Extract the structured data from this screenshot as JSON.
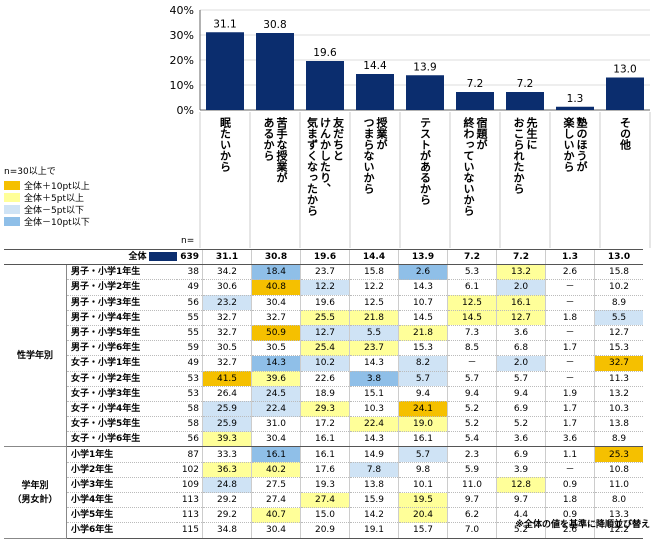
{
  "chart_data": {
    "type": "bar",
    "categories": [
      "眠たいから",
      "苦手な授業があるから",
      "友だとけんかしたり、気まずくなったから",
      "授業がつまらないから",
      "テストがあるから",
      "宿題が終わっていないから",
      "先生におこられたから",
      "塾のほうが楽しいから",
      "その他"
    ],
    "values": [
      31.1,
      30.8,
      19.6,
      14.4,
      13.9,
      7.2,
      7.2,
      1.3,
      13.0
    ],
    "value_labels": [
      "31.1",
      "30.8",
      "19.6",
      "14.4",
      "13.9",
      "7.2",
      "7.2",
      "1.3",
      "13.0"
    ],
    "y_ticks": [
      "40%",
      "30%",
      "20%",
      "10%",
      "0%"
    ],
    "ylim": [
      0,
      40
    ],
    "bar_color": "#0b2d6e"
  },
  "label_lines": [
    [
      "眠たいから"
    ],
    [
      "苦手な授業が",
      "あるから"
    ],
    [
      "友だちと",
      "けんかしたり、",
      "気まずくなったから"
    ],
    [
      "授業が",
      "つまらないから"
    ],
    [
      "テストがあるから"
    ],
    [
      "宿題が",
      "終わっていないから"
    ],
    [
      "先生に",
      "おこられたから"
    ],
    [
      "塾のほうが",
      "楽しいから"
    ],
    [
      "その他"
    ]
  ],
  "legend": {
    "title": "n=30以上で",
    "items": [
      {
        "label": "全体＋10pt以上",
        "color": "#f5c000"
      },
      {
        "label": "全体＋5pt以上",
        "color": "#ffff99"
      },
      {
        "label": "全体－5pt以下",
        "color": "#cfe3f5"
      },
      {
        "label": "全体－10pt以下",
        "color": "#8fbfe8"
      }
    ]
  },
  "n_caption": "n=",
  "colors": {
    "p10": "#f5c000",
    "p5": "#ffff99",
    "m5": "#cfe3f5",
    "m10": "#8fbfe8"
  },
  "table": {
    "total": {
      "label": "全体",
      "n": "639",
      "values": [
        "31.1",
        "30.8",
        "19.6",
        "14.4",
        "13.9",
        "7.2",
        "7.2",
        "1.3",
        "13.0"
      ]
    },
    "groups": [
      {
        "name": "性学年別",
        "rows": [
          {
            "label": "男子・小学1年生",
            "n": "38",
            "values": [
              "34.2",
              "18.4",
              "23.7",
              "15.8",
              "2.6",
              "5.3",
              "13.2",
              "2.6",
              "15.8"
            ],
            "hl": [
              "",
              "m10",
              "",
              "",
              "m10",
              "",
              "p5",
              "",
              ""
            ]
          },
          {
            "label": "男子・小学2年生",
            "n": "49",
            "values": [
              "30.6",
              "40.8",
              "12.2",
              "12.2",
              "14.3",
              "6.1",
              "2.0",
              "－",
              "10.2"
            ],
            "hl": [
              "",
              "p10",
              "m5",
              "",
              "",
              "",
              "m5",
              "",
              ""
            ]
          },
          {
            "label": "男子・小学3年生",
            "n": "56",
            "values": [
              "23.2",
              "30.4",
              "19.6",
              "12.5",
              "10.7",
              "12.5",
              "16.1",
              "－",
              "8.9"
            ],
            "hl": [
              "m5",
              "",
              "",
              "",
              "",
              "p5",
              "p5",
              "",
              ""
            ]
          },
          {
            "label": "男子・小学4年生",
            "n": "55",
            "values": [
              "32.7",
              "32.7",
              "25.5",
              "21.8",
              "14.5",
              "14.5",
              "12.7",
              "1.8",
              "5.5"
            ],
            "hl": [
              "",
              "",
              "p5",
              "p5",
              "",
              "p5",
              "p5",
              "",
              "m5"
            ]
          },
          {
            "label": "男子・小学5年生",
            "n": "55",
            "values": [
              "32.7",
              "50.9",
              "12.7",
              "5.5",
              "21.8",
              "7.3",
              "3.6",
              "－",
              "12.7"
            ],
            "hl": [
              "",
              "p10",
              "m5",
              "m5",
              "p5",
              "",
              "",
              "",
              ""
            ]
          },
          {
            "label": "男子・小学6年生",
            "n": "59",
            "values": [
              "30.5",
              "30.5",
              "25.4",
              "23.7",
              "15.3",
              "8.5",
              "6.8",
              "1.7",
              "15.3"
            ],
            "hl": [
              "",
              "",
              "p5",
              "p5",
              "",
              "",
              "",
              "",
              ""
            ]
          },
          {
            "label": "女子・小学1年生",
            "n": "49",
            "values": [
              "32.7",
              "14.3",
              "10.2",
              "14.3",
              "8.2",
              "－",
              "2.0",
              "－",
              "32.7"
            ],
            "hl": [
              "",
              "m10",
              "m5",
              "",
              "m5",
              "",
              "m5",
              "",
              "p10"
            ]
          },
          {
            "label": "女子・小学2年生",
            "n": "53",
            "values": [
              "41.5",
              "39.6",
              "22.6",
              "3.8",
              "5.7",
              "5.7",
              "5.7",
              "－",
              "11.3"
            ],
            "hl": [
              "p10",
              "p5",
              "",
              "m10",
              "m5",
              "",
              "",
              "",
              ""
            ]
          },
          {
            "label": "女子・小学3年生",
            "n": "53",
            "values": [
              "26.4",
              "24.5",
              "18.9",
              "15.1",
              "9.4",
              "9.4",
              "9.4",
              "1.9",
              "13.2"
            ],
            "hl": [
              "",
              "m5",
              "",
              "",
              "",
              "",
              "",
              "",
              ""
            ]
          },
          {
            "label": "女子・小学4年生",
            "n": "58",
            "values": [
              "25.9",
              "22.4",
              "29.3",
              "10.3",
              "24.1",
              "5.2",
              "6.9",
              "1.7",
              "10.3"
            ],
            "hl": [
              "m5",
              "m5",
              "p5",
              "",
              "p10",
              "",
              "",
              "",
              ""
            ]
          },
          {
            "label": "女子・小学5年生",
            "n": "58",
            "values": [
              "25.9",
              "31.0",
              "17.2",
              "22.4",
              "19.0",
              "5.2",
              "5.2",
              "1.7",
              "13.8"
            ],
            "hl": [
              "m5",
              "",
              "",
              "p5",
              "p5",
              "",
              "",
              "",
              ""
            ]
          },
          {
            "label": "女子・小学6年生",
            "n": "56",
            "values": [
              "39.3",
              "30.4",
              "16.1",
              "14.3",
              "16.1",
              "5.4",
              "3.6",
              "3.6",
              "8.9"
            ],
            "hl": [
              "p5",
              "",
              "",
              "",
              "",
              "",
              "",
              "",
              ""
            ]
          }
        ]
      },
      {
        "name": "学年別\n（男女計）",
        "rows": [
          {
            "label": "小学1年生",
            "n": "87",
            "values": [
              "33.3",
              "16.1",
              "16.1",
              "14.9",
              "5.7",
              "2.3",
              "6.9",
              "1.1",
              "25.3"
            ],
            "hl": [
              "",
              "m10",
              "",
              "",
              "m5",
              "",
              "",
              "",
              "p10"
            ]
          },
          {
            "label": "小学2年生",
            "n": "102",
            "values": [
              "36.3",
              "40.2",
              "17.6",
              "7.8",
              "9.8",
              "5.9",
              "3.9",
              "－",
              "10.8"
            ],
            "hl": [
              "p5",
              "p5",
              "",
              "m5",
              "",
              "",
              "",
              "",
              ""
            ]
          },
          {
            "label": "小学3年生",
            "n": "109",
            "values": [
              "24.8",
              "27.5",
              "19.3",
              "13.8",
              "10.1",
              "11.0",
              "12.8",
              "0.9",
              "11.0"
            ],
            "hl": [
              "m5",
              "",
              "",
              "",
              "",
              "",
              "p5",
              "",
              ""
            ]
          },
          {
            "label": "小学4年生",
            "n": "113",
            "values": [
              "29.2",
              "27.4",
              "27.4",
              "15.9",
              "19.5",
              "9.7",
              "9.7",
              "1.8",
              "8.0"
            ],
            "hl": [
              "",
              "",
              "p5",
              "",
              "p5",
              "",
              "",
              "",
              ""
            ]
          },
          {
            "label": "小学5年生",
            "n": "113",
            "values": [
              "29.2",
              "40.7",
              "15.0",
              "14.2",
              "20.4",
              "6.2",
              "4.4",
              "0.9",
              "13.3"
            ],
            "hl": [
              "",
              "p5",
              "",
              "",
              "p5",
              "",
              "",
              "",
              ""
            ]
          },
          {
            "label": "小学6年生",
            "n": "115",
            "values": [
              "34.8",
              "30.4",
              "20.9",
              "19.1",
              "15.7",
              "7.0",
              "5.2",
              "2.6",
              "12.2"
            ],
            "hl": [
              "",
              "",
              "",
              "",
              "",
              "",
              "",
              "",
              ""
            ]
          }
        ]
      }
    ]
  },
  "footnote": "※全体の値を基準に降順並び替え"
}
